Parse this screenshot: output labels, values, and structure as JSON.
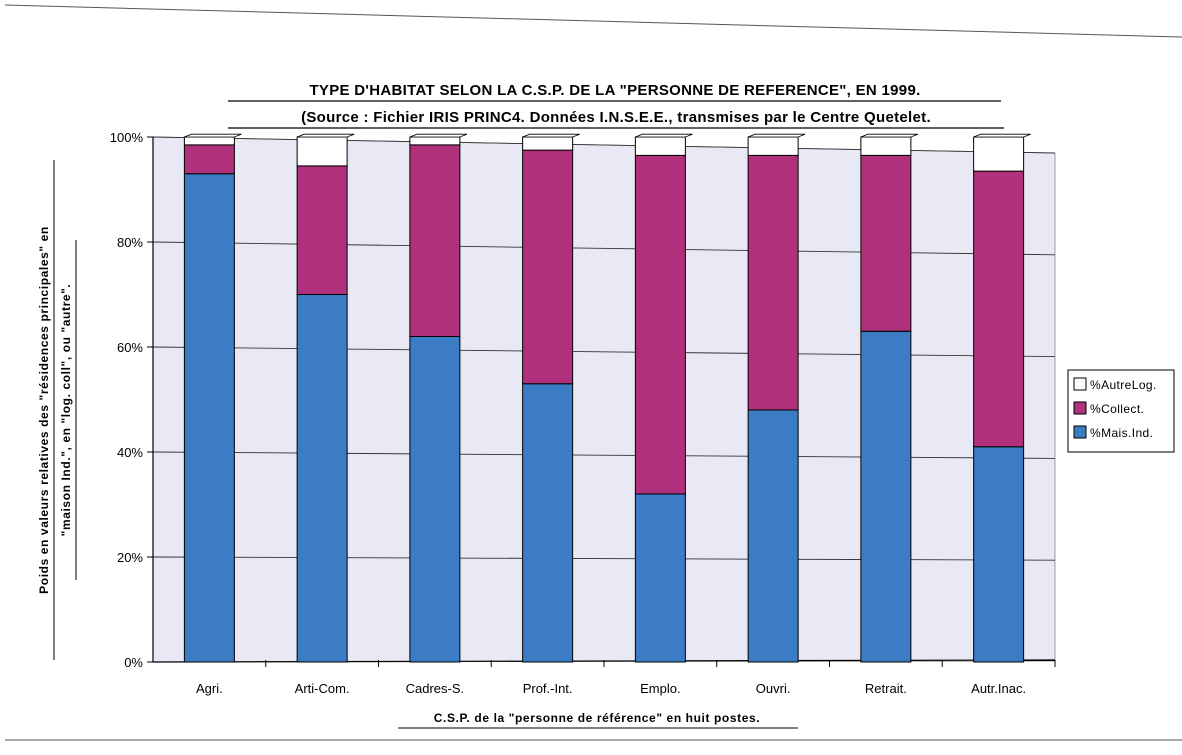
{
  "chart_data": {
    "type": "bar",
    "stacked": true,
    "title": "TYPE D'HABITAT SELON LA C.S.P. DE LA \"PERSONNE DE REFERENCE\", EN 1999.",
    "subtitle": "(Source : Fichier IRIS PRINC4. Données I.N.S.E.E., transmises par le Centre Quetelet.",
    "xlabel": "C.S.P. de la \"personne de référence\" en huit postes.",
    "ylabel_line1": "Poids en valeurs relatives des \"résidences principales\" en",
    "ylabel_line2": "\"maison Ind.\", en \"log. coll\", ou \"autre\".",
    "categories": [
      "Agri.",
      "Arti-Com.",
      "Cadres-S.",
      "Prof.-Int.",
      "Emplo.",
      "Ouvri.",
      "Retrait.",
      "Autr.Inac."
    ],
    "y_ticks": [
      "0%",
      "20%",
      "40%",
      "60%",
      "80%",
      "100%"
    ],
    "ylim": [
      0,
      100
    ],
    "grid": true,
    "legend_position": "right",
    "series": [
      {
        "name": "%Mais.Ind.",
        "color": "#3b7cc4",
        "values": [
          93,
          70,
          62,
          53,
          32,
          48,
          63,
          41
        ]
      },
      {
        "name": "%Collect.",
        "color": "#b0307c",
        "values": [
          5.5,
          24.5,
          36.5,
          44.5,
          64.5,
          48.5,
          33.5,
          52.5
        ]
      },
      {
        "name": "%AutreLog.",
        "color": "#ffffff",
        "values": [
          1.5,
          5.5,
          1.5,
          2.5,
          3.5,
          3.5,
          3.5,
          6.5
        ]
      }
    ],
    "legend_order": [
      "%AutreLog.",
      "%Collect.",
      "%Mais.Ind."
    ],
    "colors": {
      "plot_bg": "#e9e9f6",
      "grid": "#333333"
    }
  }
}
